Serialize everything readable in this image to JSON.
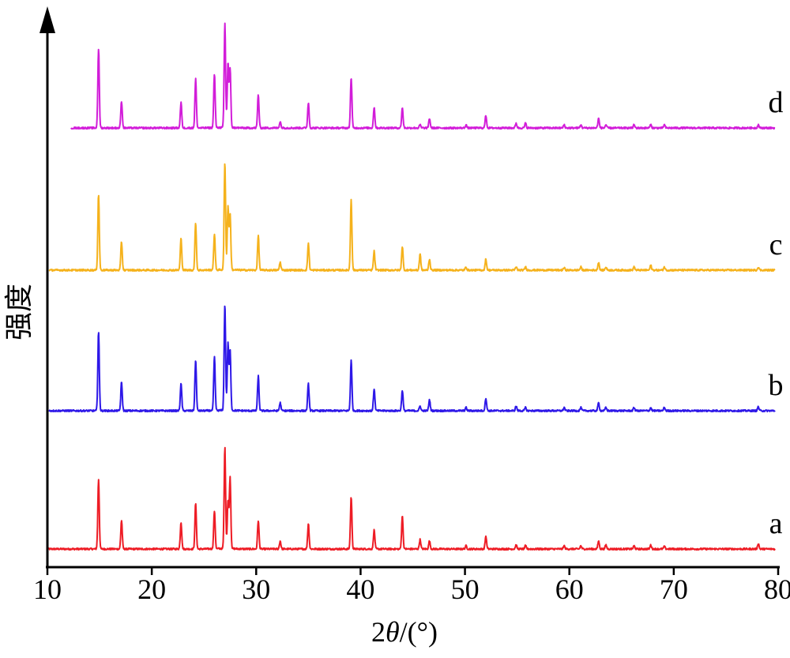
{
  "chart_data": {
    "type": "line",
    "title": "",
    "xlabel": "2θ/(°)",
    "xlabel_parts": {
      "number": "2",
      "symbol": "θ",
      "unit": "/(°)"
    },
    "ylabel": "强度",
    "xlim": [
      10,
      80
    ],
    "x_ticks": [
      10,
      20,
      30,
      40,
      50,
      60,
      70,
      80
    ],
    "x_tick_labels": [
      "10",
      "20",
      "30",
      "40",
      "50",
      "60",
      "70",
      "80"
    ],
    "y_ticks": false,
    "grid": false,
    "layout": "stacked offset traces",
    "series": [
      {
        "name": "a",
        "color": "#ee1c25",
        "peaks": [
          [
            14.9,
            88
          ],
          [
            17.1,
            36
          ],
          [
            22.8,
            34
          ],
          [
            24.2,
            58
          ],
          [
            26.0,
            48
          ],
          [
            27.0,
            128
          ],
          [
            27.5,
            90
          ],
          [
            27.3,
            60
          ],
          [
            30.2,
            36
          ],
          [
            32.3,
            10
          ],
          [
            35.0,
            32
          ],
          [
            39.1,
            66
          ],
          [
            41.3,
            24
          ],
          [
            44.0,
            42
          ],
          [
            45.7,
            12
          ],
          [
            46.6,
            10
          ],
          [
            50.1,
            4
          ],
          [
            52.0,
            16
          ],
          [
            54.9,
            5
          ],
          [
            55.8,
            4
          ],
          [
            59.5,
            4
          ],
          [
            61.1,
            4
          ],
          [
            62.8,
            10
          ],
          [
            63.5,
            5
          ],
          [
            66.2,
            4
          ],
          [
            67.8,
            5
          ],
          [
            69.1,
            3
          ],
          [
            78.1,
            7
          ]
        ]
      },
      {
        "name": "b",
        "color": "#2e18e8",
        "peaks": [
          [
            14.9,
            100
          ],
          [
            17.1,
            36
          ],
          [
            22.8,
            34
          ],
          [
            24.2,
            64
          ],
          [
            26.0,
            68
          ],
          [
            27.0,
            134
          ],
          [
            27.5,
            76
          ],
          [
            27.3,
            84
          ],
          [
            30.2,
            44
          ],
          [
            32.3,
            10
          ],
          [
            35.0,
            34
          ],
          [
            39.1,
            64
          ],
          [
            41.3,
            28
          ],
          [
            44.0,
            26
          ],
          [
            45.7,
            6
          ],
          [
            46.6,
            14
          ],
          [
            50.1,
            4
          ],
          [
            52.0,
            16
          ],
          [
            54.9,
            6
          ],
          [
            55.8,
            4
          ],
          [
            59.5,
            4
          ],
          [
            61.1,
            4
          ],
          [
            62.8,
            10
          ],
          [
            63.5,
            4
          ],
          [
            66.2,
            4
          ],
          [
            67.8,
            4
          ],
          [
            69.1,
            4
          ],
          [
            78.1,
            5
          ]
        ]
      },
      {
        "name": "c",
        "color": "#f5b21c",
        "peaks": [
          [
            14.9,
            96
          ],
          [
            17.1,
            36
          ],
          [
            22.8,
            40
          ],
          [
            24.2,
            60
          ],
          [
            26.0,
            46
          ],
          [
            27.0,
            136
          ],
          [
            27.5,
            70
          ],
          [
            27.3,
            80
          ],
          [
            30.2,
            44
          ],
          [
            32.3,
            10
          ],
          [
            35.0,
            34
          ],
          [
            39.1,
            90
          ],
          [
            41.3,
            24
          ],
          [
            44.0,
            30
          ],
          [
            45.7,
            20
          ],
          [
            46.6,
            14
          ],
          [
            50.1,
            4
          ],
          [
            52.0,
            14
          ],
          [
            54.9,
            4
          ],
          [
            55.8,
            4
          ],
          [
            59.5,
            3
          ],
          [
            61.1,
            4
          ],
          [
            62.8,
            10
          ],
          [
            63.5,
            4
          ],
          [
            66.2,
            4
          ],
          [
            67.8,
            6
          ],
          [
            69.1,
            4
          ],
          [
            78.1,
            4
          ]
        ]
      },
      {
        "name": "d",
        "color": "#d21dd9",
        "peaks": [
          [
            14.9,
            100
          ],
          [
            17.1,
            34
          ],
          [
            22.8,
            32
          ],
          [
            24.2,
            62
          ],
          [
            26.0,
            68
          ],
          [
            27.0,
            132
          ],
          [
            27.5,
            74
          ],
          [
            27.3,
            82
          ],
          [
            30.2,
            42
          ],
          [
            32.3,
            8
          ],
          [
            35.0,
            32
          ],
          [
            39.1,
            64
          ],
          [
            41.3,
            26
          ],
          [
            44.0,
            26
          ],
          [
            45.7,
            4
          ],
          [
            46.6,
            12
          ],
          [
            50.1,
            4
          ],
          [
            52.0,
            16
          ],
          [
            54.9,
            6
          ],
          [
            55.8,
            6
          ],
          [
            59.5,
            4
          ],
          [
            61.1,
            4
          ],
          [
            62.8,
            12
          ],
          [
            63.5,
            4
          ],
          [
            66.2,
            4
          ],
          [
            67.8,
            4
          ],
          [
            69.1,
            4
          ],
          [
            78.1,
            4
          ]
        ]
      }
    ]
  }
}
